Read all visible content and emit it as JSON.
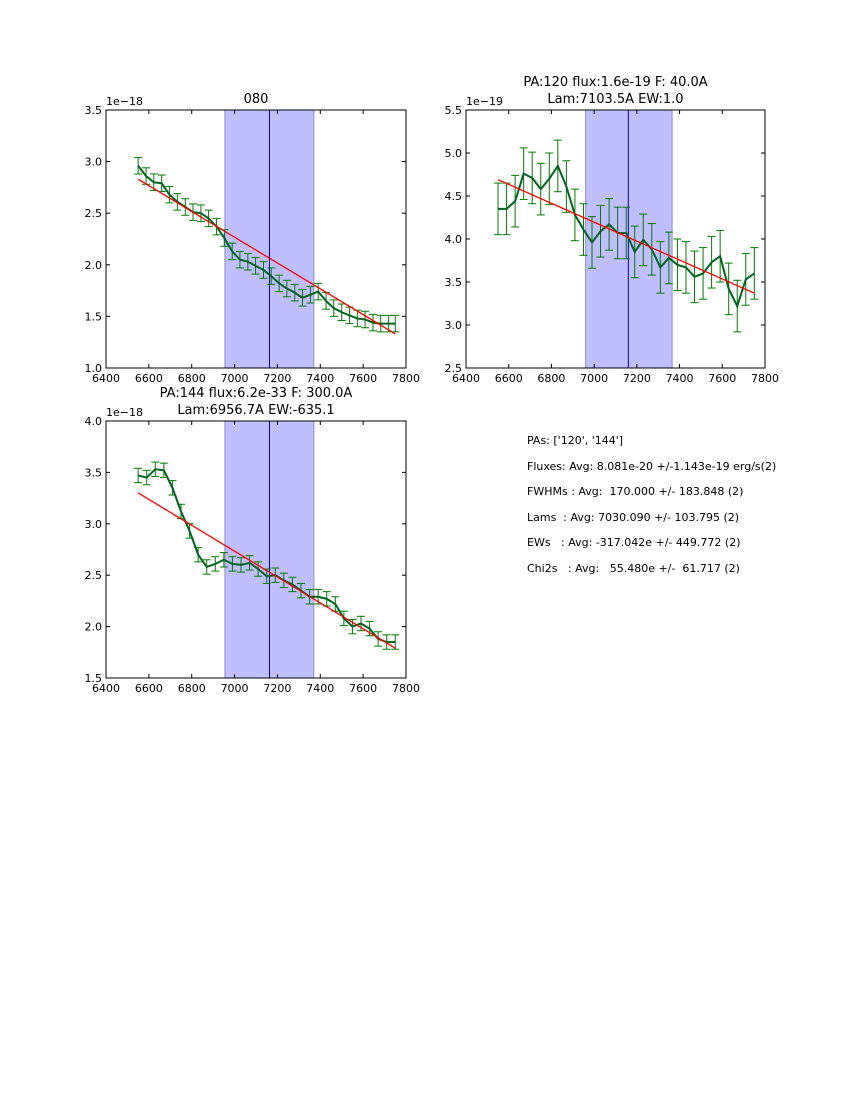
{
  "chart_data": [
    {
      "type": "line",
      "title": "080",
      "title_line2": "",
      "offset_label": "1e−18",
      "xlim": [
        6400,
        7800
      ],
      "ylim": [
        1.0,
        3.5
      ],
      "xticks": [
        6400,
        6600,
        6800,
        7000,
        7200,
        7400,
        7600,
        7800
      ],
      "yticks": [
        "1.0",
        "1.5",
        "2.0",
        "2.5",
        "3.0",
        "3.5"
      ],
      "ytick_values": [
        1.0,
        1.5,
        2.0,
        2.5,
        3.0,
        3.5
      ],
      "shaded_region": [
        6955,
        7370
      ],
      "center_line": 7163,
      "fit_line": {
        "x": [
          6550,
          7750
        ],
        "y": [
          2.83,
          1.33
        ]
      },
      "series": {
        "name": "spectrum",
        "x": [
          6550,
          6587,
          6623,
          6660,
          6696,
          6733,
          6770,
          6806,
          6843,
          6879,
          6916,
          6952,
          6989,
          7025,
          7062,
          7098,
          7135,
          7171,
          7208,
          7244,
          7281,
          7317,
          7354,
          7390,
          7427,
          7463,
          7500,
          7536,
          7573,
          7609,
          7646,
          7682,
          7719,
          7750
        ],
        "y": [
          2.96,
          2.86,
          2.8,
          2.79,
          2.68,
          2.61,
          2.56,
          2.51,
          2.5,
          2.45,
          2.37,
          2.26,
          2.13,
          2.05,
          2.03,
          1.99,
          1.95,
          1.89,
          1.82,
          1.77,
          1.73,
          1.68,
          1.71,
          1.74,
          1.65,
          1.58,
          1.54,
          1.51,
          1.48,
          1.47,
          1.44,
          1.43,
          1.43,
          1.43
        ],
        "err": 0.08
      }
    },
    {
      "type": "line",
      "title": "PA:120 flux:1.6e-19 F: 40.0A",
      "title_line2": "Lam:7103.5A EW:1.0",
      "offset_label": "1e−19",
      "xlim": [
        6400,
        7800
      ],
      "ylim": [
        2.5,
        5.5
      ],
      "xticks": [
        6400,
        6600,
        6800,
        7000,
        7200,
        7400,
        7600,
        7800
      ],
      "yticks": [
        "2.5",
        "3.0",
        "3.5",
        "4.0",
        "4.5",
        "5.0",
        "5.5"
      ],
      "ytick_values": [
        2.5,
        3.0,
        3.5,
        4.0,
        4.5,
        5.0,
        5.5
      ],
      "shaded_region": [
        6960,
        7365
      ],
      "center_line": 7160,
      "fit_line": {
        "x": [
          6550,
          7750
        ],
        "y": [
          4.69,
          3.37
        ]
      },
      "series": {
        "name": "spectrum",
        "x": [
          6550,
          6590,
          6630,
          6670,
          6710,
          6750,
          6790,
          6830,
          6870,
          6910,
          6950,
          6990,
          7030,
          7070,
          7110,
          7150,
          7190,
          7230,
          7270,
          7310,
          7350,
          7390,
          7430,
          7470,
          7510,
          7550,
          7590,
          7630,
          7670,
          7710,
          7750
        ],
        "y": [
          4.35,
          4.35,
          4.44,
          4.76,
          4.71,
          4.58,
          4.7,
          4.85,
          4.61,
          4.28,
          4.11,
          3.96,
          4.09,
          4.17,
          4.07,
          4.07,
          3.85,
          3.99,
          3.88,
          3.67,
          3.78,
          3.7,
          3.67,
          3.56,
          3.6,
          3.73,
          3.8,
          3.42,
          3.22,
          3.53,
          3.6
        ],
        "err": 0.3
      }
    },
    {
      "type": "line",
      "title": "PA:144 flux:6.2e-33 F: 300.0A",
      "title_line2": "Lam:6956.7A EW:-635.1",
      "offset_label": "1e−18",
      "xlim": [
        6400,
        7800
      ],
      "ylim": [
        1.5,
        4.0
      ],
      "xticks": [
        6400,
        6600,
        6800,
        7000,
        7200,
        7400,
        7600,
        7800
      ],
      "yticks": [
        "1.5",
        "2.0",
        "2.5",
        "3.0",
        "3.5",
        "4.0"
      ],
      "ytick_values": [
        1.5,
        2.0,
        2.5,
        3.0,
        3.5,
        4.0
      ],
      "shaded_region": [
        6955,
        7370
      ],
      "center_line": 7163,
      "fit_line": {
        "x": [
          6550,
          7750
        ],
        "y": [
          3.3,
          1.79
        ]
      },
      "series": {
        "name": "spectrum",
        "x": [
          6550,
          6590,
          6630,
          6670,
          6710,
          6750,
          6790,
          6830,
          6870,
          6910,
          6950,
          6990,
          7030,
          7070,
          7110,
          7150,
          7190,
          7230,
          7270,
          7310,
          7350,
          7390,
          7430,
          7470,
          7510,
          7550,
          7590,
          7630,
          7670,
          7710,
          7750
        ],
        "y": [
          3.47,
          3.45,
          3.53,
          3.52,
          3.35,
          3.12,
          2.93,
          2.7,
          2.58,
          2.61,
          2.65,
          2.61,
          2.6,
          2.62,
          2.56,
          2.49,
          2.5,
          2.45,
          2.41,
          2.35,
          2.29,
          2.29,
          2.27,
          2.22,
          2.08,
          2.0,
          2.03,
          1.98,
          1.88,
          1.85,
          1.85
        ],
        "err": 0.07
      }
    }
  ],
  "summary": {
    "lines": [
      "PAs: ['120', '144']",
      "Fluxes: Avg: 8.081e-20 +/-1.143e-19 erg/s(2)",
      "FWHMs : Avg:  170.000 +/- 183.848 (2)",
      "Lams  : Avg: 7030.090 +/- 103.795 (2)",
      "EWs   : Avg: -317.042e +/- 449.772 (2)",
      "Chi2s   : Avg:   55.480e +/-  61.717 (2)"
    ]
  },
  "colors": {
    "data_line": "#006420",
    "errorbar": "#007a00",
    "fit_line": "#ff0000",
    "shade": "#bfbfff",
    "shade_edge": "#8c8cc8",
    "center_line": "#0000c8"
  }
}
